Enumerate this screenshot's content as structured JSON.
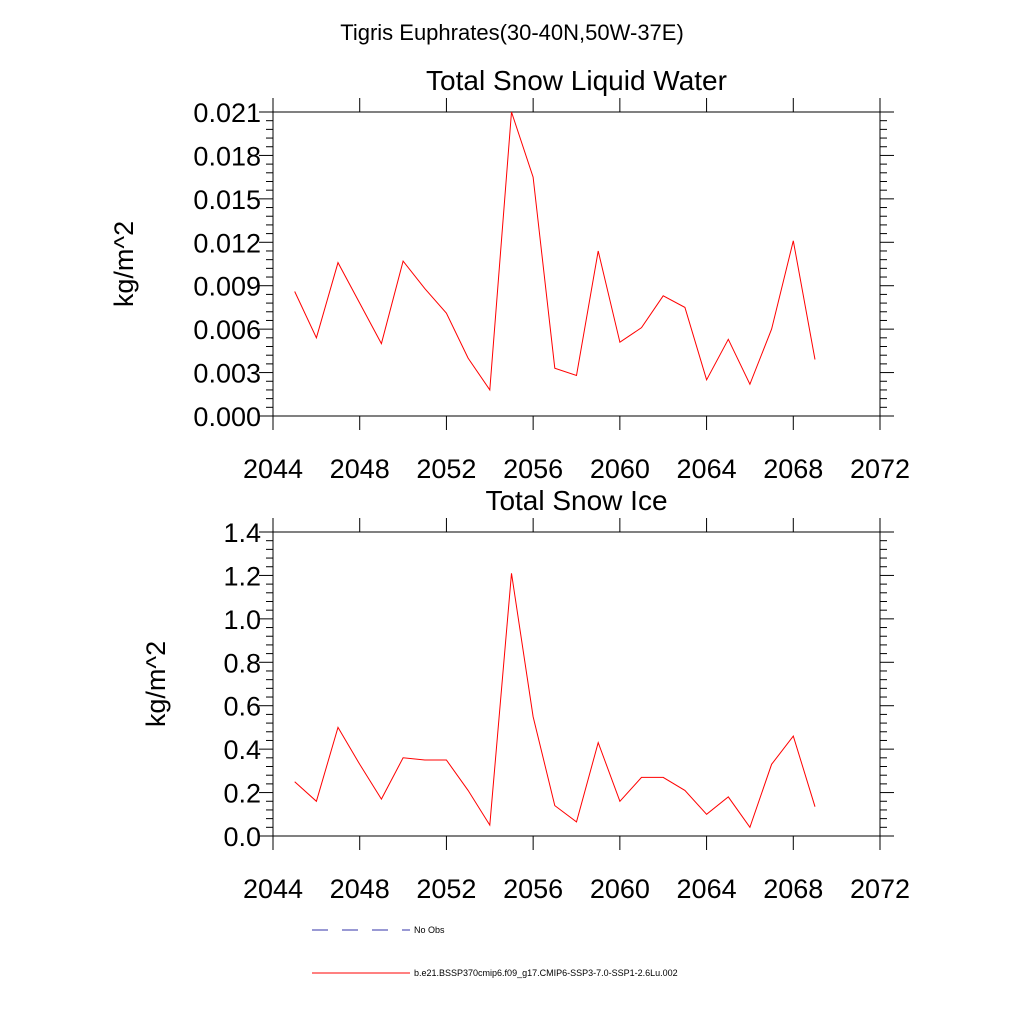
{
  "figure_title": "Tigris Euphrates(30-40N,50W-37E)",
  "legend": {
    "no_obs_label": "No Obs",
    "no_obs_color": "#3333aa",
    "model_label": "b.e21.BSSP370cmip6.f09_g17.CMIP6-SSP3-7.0-SSP1-2.6Lu.002",
    "model_color": "#ff0000"
  },
  "chart_data": [
    {
      "type": "line",
      "title": "Total Snow Liquid Water",
      "ylabel": "kg/m^2",
      "xlabel": "",
      "xlim": [
        2044,
        2072
      ],
      "ylim": [
        0,
        0.021
      ],
      "xticks": [
        "2044",
        "2048",
        "2052",
        "2056",
        "2060",
        "2064",
        "2068",
        "2072"
      ],
      "yticks": [
        "0.000",
        "0.003",
        "0.006",
        "0.009",
        "0.012",
        "0.015",
        "0.018",
        "0.021"
      ],
      "series": [
        {
          "name": "b.e21.BSSP370cmip6.f09_g17.CMIP6-SSP3-7.0-SSP1-2.6Lu.002",
          "color": "#ff0000",
          "x": [
            2045,
            2046,
            2047,
            2048,
            2049,
            2050,
            2051,
            2052,
            2053,
            2054,
            2055,
            2056,
            2057,
            2058,
            2059,
            2060,
            2061,
            2062,
            2063,
            2064,
            2065,
            2066,
            2067,
            2068,
            2069
          ],
          "y": [
            0.0086,
            0.0054,
            0.0106,
            0.0078,
            0.005,
            0.0107,
            0.0088,
            0.0071,
            0.004,
            0.0018,
            0.021,
            0.0165,
            0.0033,
            0.0028,
            0.0114,
            0.0051,
            0.0061,
            0.0083,
            0.0075,
            0.0025,
            0.0053,
            0.0022,
            0.006,
            0.0121,
            0.0039
          ]
        }
      ]
    },
    {
      "type": "line",
      "title": "Total Snow Ice",
      "ylabel": "kg/m^2",
      "xlabel": "",
      "xlim": [
        2044,
        2072
      ],
      "ylim": [
        0,
        1.4
      ],
      "xticks": [
        "2044",
        "2048",
        "2052",
        "2056",
        "2060",
        "2064",
        "2068",
        "2072"
      ],
      "yticks": [
        "0.0",
        "0.2",
        "0.4",
        "0.6",
        "0.8",
        "1.0",
        "1.2",
        "1.4"
      ],
      "series": [
        {
          "name": "b.e21.BSSP370cmip6.f09_g17.CMIP6-SSP3-7.0-SSP1-2.6Lu.002",
          "color": "#ff0000",
          "x": [
            2045,
            2046,
            2047,
            2048,
            2049,
            2050,
            2051,
            2052,
            2053,
            2054,
            2055,
            2056,
            2057,
            2058,
            2059,
            2060,
            2061,
            2062,
            2063,
            2064,
            2065,
            2066,
            2067,
            2068,
            2069
          ],
          "y": [
            0.25,
            0.16,
            0.5,
            0.33,
            0.17,
            0.36,
            0.35,
            0.35,
            0.21,
            0.05,
            1.21,
            0.55,
            0.14,
            0.065,
            0.43,
            0.16,
            0.27,
            0.27,
            0.21,
            0.1,
            0.18,
            0.04,
            0.33,
            0.46,
            0.135
          ]
        }
      ]
    }
  ]
}
